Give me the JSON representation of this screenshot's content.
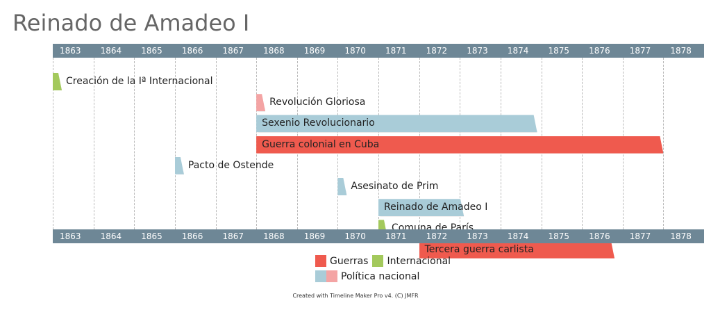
{
  "title": "Reinado de Amadeo I",
  "footer": "Created with Timeline Maker Pro v4. (C) JMFR",
  "colors": {
    "guerras": "#ef5a4e",
    "internacional": "#a3c95c",
    "politica_nacional_a": "#a9ccd8",
    "politica_nacional_b": "#f4a4a4",
    "axis": "#6e8796"
  },
  "legend": {
    "guerras": "Guerras",
    "internacional": "Internacional",
    "politica_nacional": "Política nacional"
  },
  "chart_data": {
    "type": "timeline",
    "title": "Reinado de Amadeo I",
    "x_range": [
      1863,
      1879
    ],
    "ticks": [
      "1863",
      "1864",
      "1865",
      "1866",
      "1867",
      "1868",
      "1869",
      "1870",
      "1871",
      "1872",
      "1873",
      "1874",
      "1875",
      "1876",
      "1877",
      "1878"
    ],
    "events": [
      {
        "label": "Creación de la Iª Internacional",
        "start": 1863.0,
        "end": 1863.0,
        "category": "internacional"
      },
      {
        "label": "Revolución Gloriosa",
        "start": 1868.0,
        "end": 1868.0,
        "category": "politica_nacional_b"
      },
      {
        "label": "Sexenio Revolucionario",
        "start": 1868.0,
        "end": 1874.9,
        "category": "politica_nacional_a"
      },
      {
        "label": "Guerra colonial en Cuba",
        "start": 1868.0,
        "end": 1878.0,
        "category": "guerras"
      },
      {
        "label": "Pacto de Ostende",
        "start": 1866.0,
        "end": 1866.0,
        "category": "politica_nacional_a"
      },
      {
        "label": "Asesinato de Prim",
        "start": 1870.0,
        "end": 1870.0,
        "category": "politica_nacional_a"
      },
      {
        "label": "Reinado de Amadeo I",
        "start": 1871.0,
        "end": 1873.1,
        "category": "politica_nacional_a"
      },
      {
        "label": "Comuna de París",
        "start": 1871.0,
        "end": 1871.0,
        "category": "internacional"
      },
      {
        "label": "Tercera guerra carlista",
        "start": 1872.0,
        "end": 1876.8,
        "category": "guerras"
      }
    ]
  }
}
